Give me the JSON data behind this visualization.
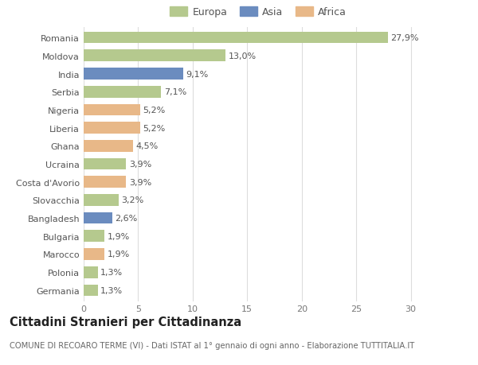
{
  "categories": [
    "Romania",
    "Moldova",
    "India",
    "Serbia",
    "Nigeria",
    "Liberia",
    "Ghana",
    "Ucraina",
    "Costa d'Avorio",
    "Slovacchia",
    "Bangladesh",
    "Bulgaria",
    "Marocco",
    "Polonia",
    "Germania"
  ],
  "values": [
    27.9,
    13.0,
    9.1,
    7.1,
    5.2,
    5.2,
    4.5,
    3.9,
    3.9,
    3.2,
    2.6,
    1.9,
    1.9,
    1.3,
    1.3
  ],
  "labels": [
    "27,9%",
    "13,0%",
    "9,1%",
    "7,1%",
    "5,2%",
    "5,2%",
    "4,5%",
    "3,9%",
    "3,9%",
    "3,2%",
    "2,6%",
    "1,9%",
    "1,9%",
    "1,3%",
    "1,3%"
  ],
  "continents": [
    "Europa",
    "Europa",
    "Asia",
    "Europa",
    "Africa",
    "Africa",
    "Africa",
    "Europa",
    "Africa",
    "Europa",
    "Asia",
    "Europa",
    "Africa",
    "Europa",
    "Europa"
  ],
  "colors": {
    "Europa": "#b5c98e",
    "Asia": "#6b8cbf",
    "Africa": "#e8b888"
  },
  "xlim": [
    0,
    32
  ],
  "xticks": [
    0,
    5,
    10,
    15,
    20,
    25,
    30
  ],
  "title": "Cittadini Stranieri per Cittadinanza",
  "subtitle": "COMUNE DI RECOARO TERME (VI) - Dati ISTAT al 1° gennaio di ogni anno - Elaborazione TUTTITALIA.IT",
  "bg_color": "#ffffff",
  "grid_color": "#dddddd",
  "bar_height": 0.65,
  "label_fontsize": 8.0,
  "tick_fontsize": 8.0,
  "title_fontsize": 10.5,
  "subtitle_fontsize": 7.2,
  "legend_fontsize": 9.0
}
